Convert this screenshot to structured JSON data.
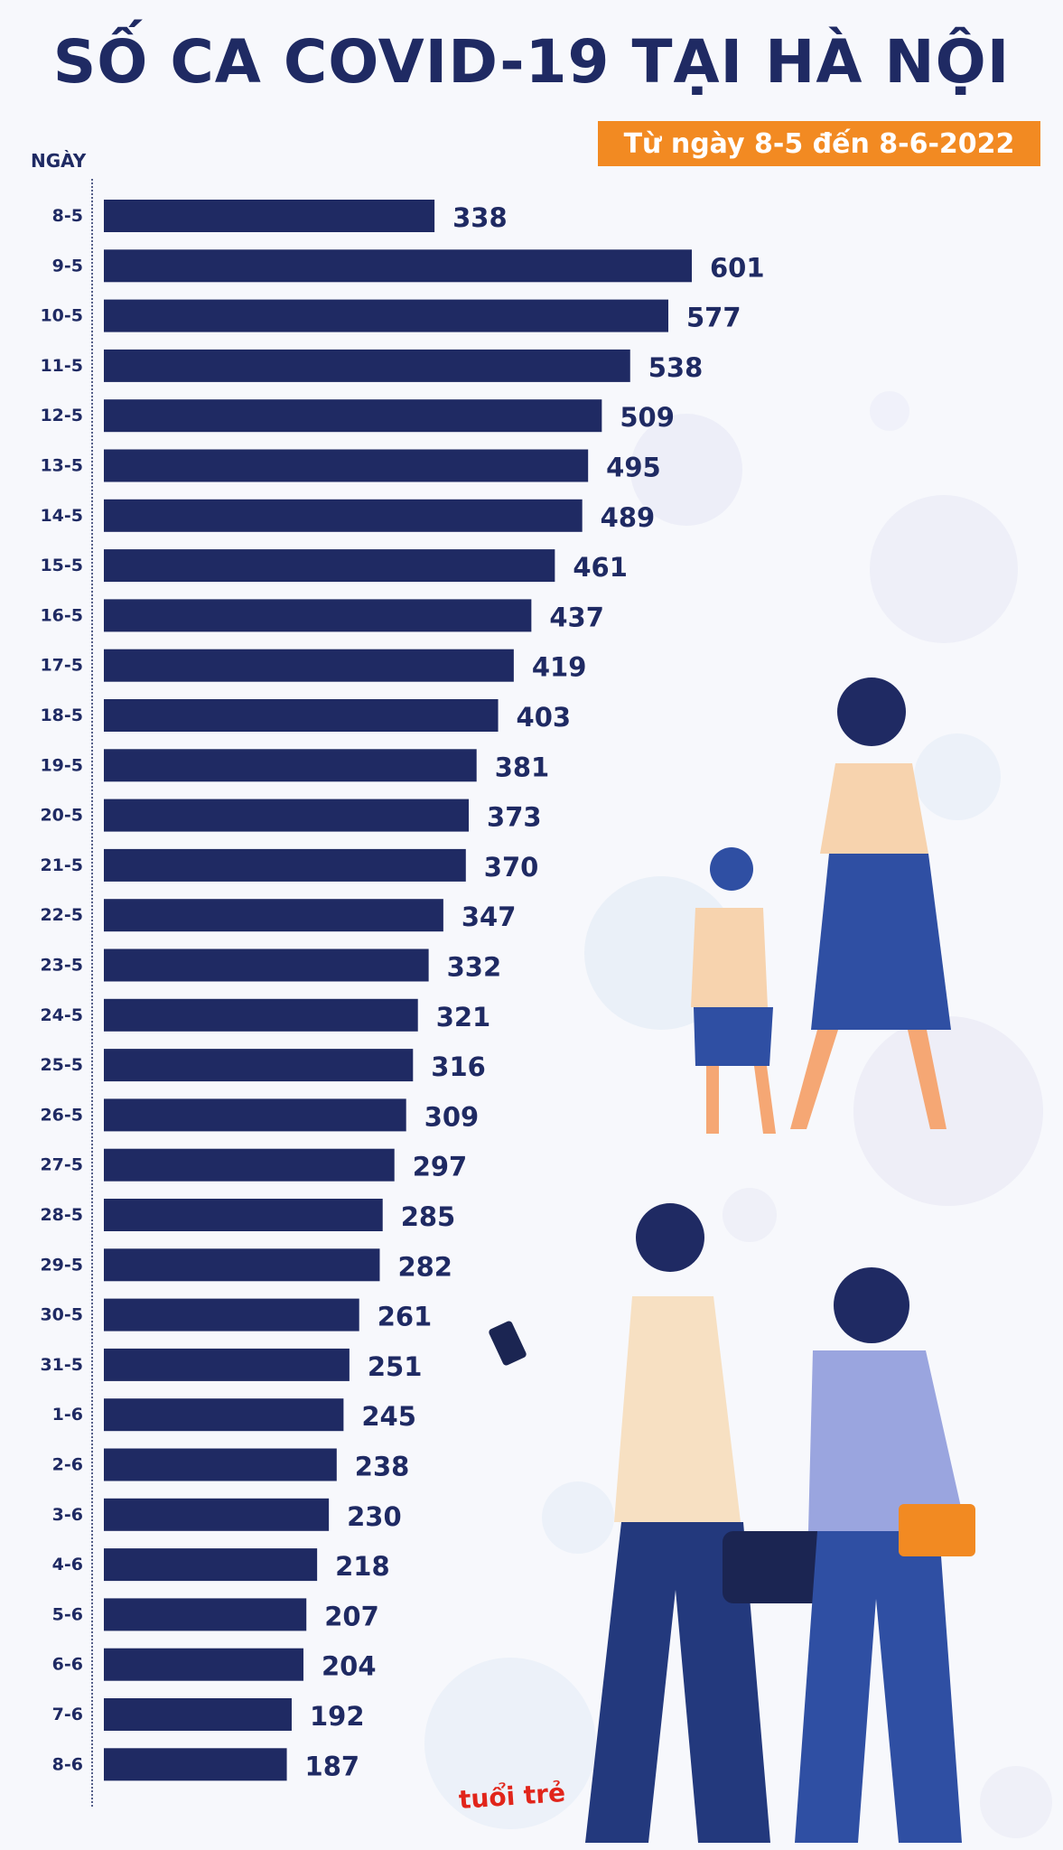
{
  "title": "SỐ CA COVID-19 TẠI HÀ NỘI",
  "subtitle": "Từ ngày 8-5 đến 8-6-2022",
  "logo_text": "tuổi trẻ",
  "colors": {
    "bar": "#1f2a63",
    "label": "#1f2a63",
    "accent": "#f28a22",
    "axis": "#1f2a63"
  },
  "chart_data": {
    "type": "bar",
    "orientation": "horizontal",
    "title": "SỐ CA COVID-19 TẠI HÀ NỘI",
    "subtitle": "Từ ngày 8-5 đến 8-6-2022",
    "ylabel": "NGÀY",
    "xlabel": "",
    "categories": [
      "8-5",
      "9-5",
      "10-5",
      "11-5",
      "12-5",
      "13-5",
      "14-5",
      "15-5",
      "16-5",
      "17-5",
      "18-5",
      "19-5",
      "20-5",
      "21-5",
      "22-5",
      "23-5",
      "24-5",
      "25-5",
      "26-5",
      "27-5",
      "28-5",
      "29-5",
      "30-5",
      "31-5",
      "1-6",
      "2-6",
      "3-6",
      "4-6",
      "5-6",
      "6-6",
      "7-6",
      "8-6"
    ],
    "values": [
      338,
      601,
      577,
      538,
      509,
      495,
      489,
      461,
      437,
      419,
      403,
      381,
      373,
      370,
      347,
      332,
      321,
      316,
      309,
      297,
      285,
      282,
      261,
      251,
      245,
      238,
      230,
      218,
      207,
      204,
      192,
      187
    ],
    "xlim": [
      0,
      601
    ],
    "grid": false,
    "legend": "none",
    "data_labels": true
  }
}
